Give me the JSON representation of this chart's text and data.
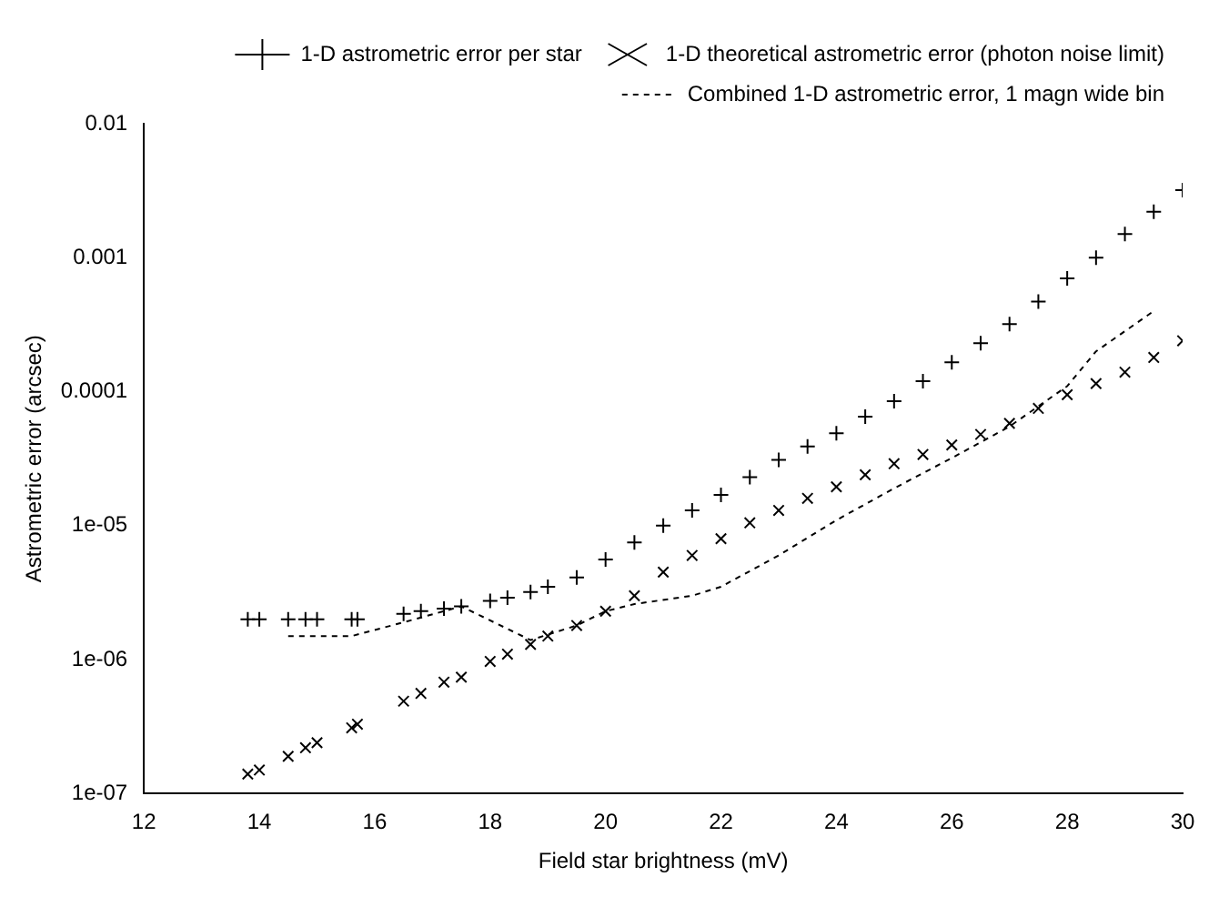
{
  "chart_data": {
    "type": "scatter",
    "xlabel": "Field star brightness (mV)",
    "ylabel": "Astrometric error (arcsec)",
    "log": "y",
    "grid": false,
    "legend": "top right",
    "xlim": [
      12,
      30
    ],
    "xticks": [
      12,
      14,
      16,
      18,
      20,
      22,
      24,
      26,
      28,
      30
    ],
    "ylim": [
      1e-07,
      0.01
    ],
    "yticks": [
      {
        "value": 1e-07,
        "label": "1e-07"
      },
      {
        "value": 1e-06,
        "label": "1e-06"
      },
      {
        "value": 1e-05,
        "label": "1e-05"
      },
      {
        "value": 0.0001,
        "label": "0.0001"
      },
      {
        "value": 0.001,
        "label": "0.001"
      },
      {
        "value": 0.01,
        "label": "0.01"
      }
    ],
    "series": [
      {
        "name": "1-D astrometric error per star",
        "color": "#000000",
        "marker": "cross",
        "x": [
          13.8,
          14.0,
          14.5,
          14.8,
          15.0,
          15.6,
          15.7,
          16.5,
          16.8,
          17.2,
          17.5,
          18.0,
          18.3,
          18.7,
          19.0,
          19.5,
          20.0,
          20.5,
          21.0,
          21.5,
          22.0,
          22.5,
          23.0,
          23.5,
          24.0,
          24.5,
          25.0,
          25.5,
          26.0,
          26.5,
          27.0,
          27.5,
          28.0,
          28.5,
          29.0,
          29.5,
          30.0
        ],
        "values": [
          2e-06,
          2e-06,
          2e-06,
          2e-06,
          2e-06,
          2e-06,
          2e-06,
          2.2e-06,
          2.3e-06,
          2.4e-06,
          2.5e-06,
          2.75e-06,
          2.9e-06,
          3.2e-06,
          3.5e-06,
          4.1e-06,
          5.6e-06,
          7.5e-06,
          1e-05,
          1.3e-05,
          1.7e-05,
          2.3e-05,
          3.1e-05,
          3.9e-05,
          4.9e-05,
          6.5e-05,
          8.5e-05,
          0.00012,
          0.000166,
          0.00023,
          0.00032,
          0.00047,
          0.0007,
          0.001,
          0.0015,
          0.0022,
          0.0032
        ]
      },
      {
        "name": "1-D theoretical astrometric error (photon noise limit)",
        "color": "#000000",
        "marker": "x",
        "x": [
          13.8,
          14.0,
          14.5,
          14.8,
          15.0,
          15.6,
          15.7,
          16.5,
          16.8,
          17.2,
          17.5,
          18.0,
          18.3,
          18.7,
          19.0,
          19.5,
          20.0,
          20.5,
          21.0,
          21.5,
          22.0,
          22.5,
          23.0,
          23.5,
          24.0,
          24.5,
          25.0,
          25.5,
          26.0,
          26.5,
          27.0,
          27.5,
          28.0,
          28.5,
          29.0,
          29.5,
          30.0
        ],
        "values": [
          1.4e-07,
          1.5e-07,
          1.9e-07,
          2.2e-07,
          2.4e-07,
          3.1e-07,
          3.3e-07,
          4.9e-07,
          5.6e-07,
          6.8e-07,
          7.4e-07,
          9.7e-07,
          1.1e-06,
          1.3e-06,
          1.5e-06,
          1.8e-06,
          2.3e-06,
          3e-06,
          4.5e-06,
          6e-06,
          8e-06,
          1.05e-05,
          1.3e-05,
          1.6e-05,
          1.95e-05,
          2.4e-05,
          2.9e-05,
          3.4e-05,
          4e-05,
          4.8e-05,
          5.8e-05,
          7.5e-05,
          9.5e-05,
          0.000115,
          0.00014,
          0.00018,
          0.00024
        ]
      },
      {
        "name": "Combined 1-D astrometric error, 1 magn wide bin",
        "type": "line",
        "line_style": "dashed",
        "color": "#000000",
        "x": [
          14.5,
          15.6,
          16.5,
          17.5,
          18.7,
          19.5,
          20.0,
          20.5,
          21.5,
          22.0,
          23.0,
          24.0,
          25.0,
          26.0,
          27.0,
          28.0,
          28.5,
          29.5
        ],
        "values": [
          1.5e-06,
          1.5e-06,
          1.9e-06,
          2.5e-06,
          1.4e-06,
          1.8e-06,
          2.3e-06,
          2.6e-06,
          3e-06,
          3.5e-06,
          6e-06,
          1.1e-05,
          1.9e-05,
          3.2e-05,
          5.5e-05,
          0.00011,
          0.0002,
          0.0004
        ]
      }
    ]
  }
}
